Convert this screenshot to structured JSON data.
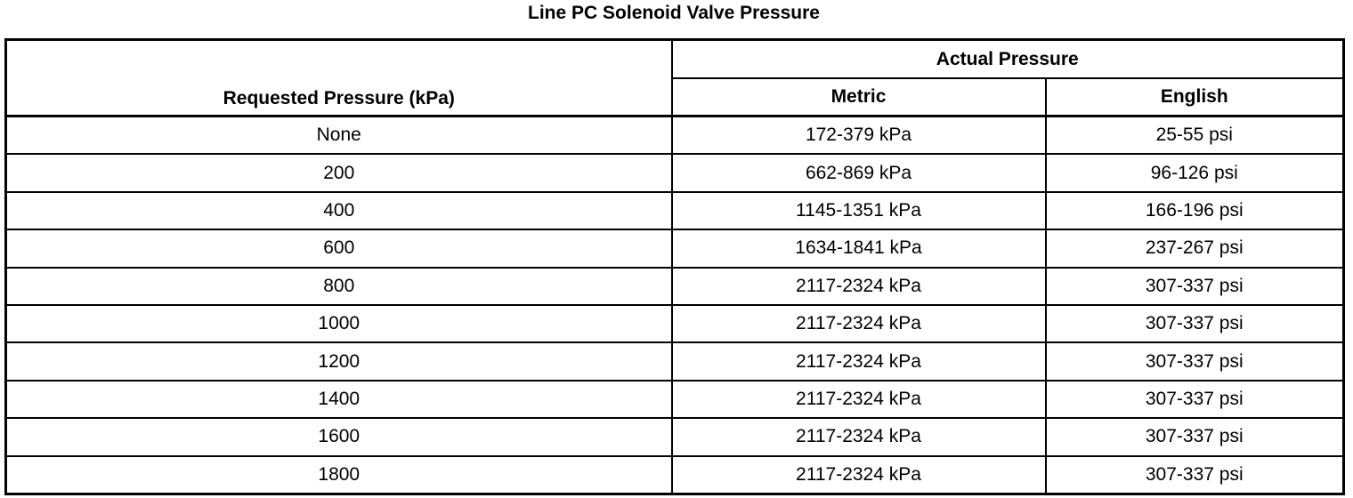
{
  "title": "Line PC Solenoid Valve Pressure",
  "headers": {
    "requested": "Requested Pressure (kPa)",
    "actual": "Actual Pressure",
    "metric": "Metric",
    "english": "English"
  },
  "rows": [
    {
      "requested": "None",
      "metric": "172-379 kPa",
      "english": "25-55 psi"
    },
    {
      "requested": "200",
      "metric": "662-869 kPa",
      "english": "96-126 psi"
    },
    {
      "requested": "400",
      "metric": "1145-1351 kPa",
      "english": "166-196 psi"
    },
    {
      "requested": "600",
      "metric": "1634-1841 kPa",
      "english": "237-267 psi"
    },
    {
      "requested": "800",
      "metric": "2117-2324 kPa",
      "english": "307-337 psi"
    },
    {
      "requested": "1000",
      "metric": "2117-2324 kPa",
      "english": "307-337 psi"
    },
    {
      "requested": "1200",
      "metric": "2117-2324 kPa",
      "english": "307-337 psi"
    },
    {
      "requested": "1400",
      "metric": "2117-2324 kPa",
      "english": "307-337 psi"
    },
    {
      "requested": "1600",
      "metric": "2117-2324 kPa",
      "english": "307-337 psi"
    },
    {
      "requested": "1800",
      "metric": "2117-2324 kPa",
      "english": "307-337 psi"
    }
  ]
}
